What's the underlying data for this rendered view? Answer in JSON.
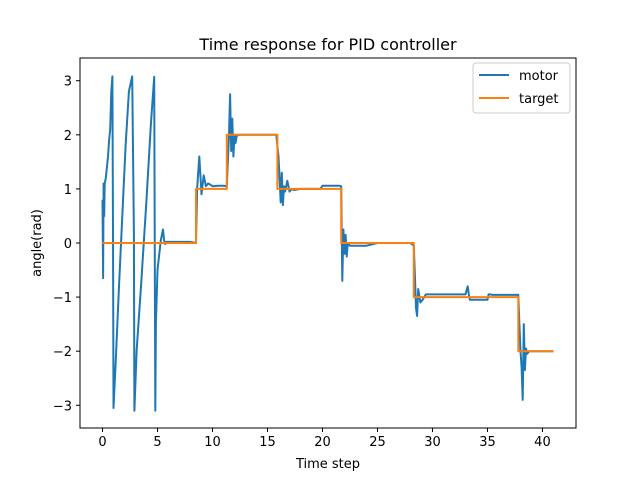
{
  "chart_data": {
    "type": "line",
    "title": "Time response for PID controller",
    "xlabel": "Time step",
    "ylabel": "angle(rad)",
    "xlim": [
      -2.05,
      43.05
    ],
    "ylim": [
      -3.42,
      3.42
    ],
    "xticks": [
      0,
      5,
      10,
      15,
      20,
      25,
      30,
      35,
      40
    ],
    "xtick_labels": [
      "0",
      "5",
      "10",
      "15",
      "20",
      "25",
      "30",
      "35",
      "40"
    ],
    "yticks": [
      -3,
      -2,
      -1,
      0,
      1,
      2,
      3
    ],
    "ytick_labels": [
      "−3",
      "−2",
      "−1",
      "0",
      "1",
      "2",
      "3"
    ],
    "grid": false,
    "legend_position": "top-right",
    "series": [
      {
        "name": "motor",
        "color": "#1f77b4",
        "x": [
          0.0,
          0.05,
          0.1,
          0.15,
          0.2,
          0.3,
          0.4,
          0.5,
          0.6,
          0.7,
          0.8,
          0.9,
          0.95,
          1.0,
          1.2,
          1.5,
          1.8,
          2.1,
          2.4,
          2.7,
          2.85,
          2.9,
          3.1,
          3.5,
          4.0,
          4.4,
          4.7,
          4.8,
          4.85,
          5.0,
          5.3,
          5.5,
          5.6,
          5.7,
          5.8,
          6.0,
          6.5,
          7.0,
          8.0,
          8.5,
          8.6,
          8.8,
          9.0,
          9.2,
          9.4,
          9.6,
          9.8,
          10.0,
          10.5,
          11.0,
          11.3,
          11.5,
          11.6,
          11.7,
          11.8,
          11.9,
          12.0,
          12.1,
          12.2,
          12.4,
          12.6,
          13.0,
          14.0,
          15.0,
          15.8,
          16.0,
          16.1,
          16.2,
          16.3,
          16.4,
          16.5,
          16.6,
          16.8,
          17.0,
          17.2,
          17.4,
          18.0,
          19.0,
          19.8,
          20.0,
          21.0,
          21.5,
          21.7,
          21.8,
          21.9,
          22.0,
          22.1,
          22.2,
          22.3,
          22.5,
          22.7,
          23.0,
          24.0,
          25.0,
          26.0,
          27.0,
          28.0,
          28.3,
          28.4,
          28.5,
          28.6,
          28.7,
          28.9,
          29.1,
          29.4,
          30.0,
          31.0,
          32.0,
          33.0,
          33.2,
          33.3,
          33.4,
          34.0,
          35.0,
          35.1,
          35.2,
          35.5,
          36.0,
          37.0,
          37.5,
          37.8,
          37.9,
          38.0,
          38.1,
          38.2,
          38.3,
          38.4,
          38.5,
          38.6,
          38.8,
          39.0,
          40.0,
          41.0
        ],
        "y": [
          0.8,
          -0.65,
          1.1,
          0.5,
          1.1,
          1.2,
          1.4,
          1.6,
          1.9,
          2.1,
          2.8,
          3.08,
          0.2,
          -3.05,
          -2.2,
          -0.8,
          0.5,
          1.8,
          2.8,
          3.08,
          0.2,
          -3.1,
          -2.0,
          -0.8,
          0.8,
          2.2,
          3.07,
          -3.1,
          -1.5,
          -0.5,
          0.05,
          0.25,
          0.05,
          -0.02,
          0.02,
          0.02,
          0.02,
          0.02,
          0.02,
          0.0,
          1.0,
          1.6,
          0.9,
          1.25,
          1.05,
          1.1,
          1.08,
          1.05,
          1.06,
          1.06,
          1.05,
          2.0,
          2.75,
          1.7,
          2.3,
          1.6,
          2.0,
          1.85,
          1.98,
          2.0,
          2.0,
          2.0,
          2.0,
          2.0,
          2.0,
          1.6,
          1.2,
          0.75,
          1.3,
          0.7,
          1.05,
          0.95,
          1.15,
          0.95,
          1.0,
          0.98,
          1.0,
          1.0,
          1.0,
          1.06,
          1.06,
          1.06,
          1.05,
          -0.7,
          0.25,
          -0.2,
          0.15,
          -0.25,
          0.0,
          -0.05,
          -0.05,
          -0.05,
          -0.05,
          0.0,
          0.0,
          0.0,
          0.0,
          -0.05,
          -0.6,
          -1.2,
          -1.35,
          -0.85,
          -1.1,
          -1.05,
          -0.95,
          -0.95,
          -0.95,
          -0.95,
          -0.95,
          -0.8,
          -0.95,
          -1.05,
          -1.05,
          -1.05,
          -0.95,
          -0.95,
          -0.96,
          -0.96,
          -0.96,
          -0.96,
          -0.96,
          -1.5,
          -2.0,
          -2.3,
          -2.9,
          -1.5,
          -2.35,
          -1.95,
          -2.05,
          -2.0,
          -2.0,
          -2.0,
          -2.0
        ]
      },
      {
        "name": "target",
        "color": "#ff7f0e",
        "x": [
          0.0,
          8.5,
          8.5,
          11.3,
          11.3,
          15.9,
          15.9,
          21.7,
          21.7,
          28.3,
          28.3,
          37.8,
          37.8,
          41.0
        ],
        "y": [
          0,
          0,
          1,
          1,
          2,
          2,
          1,
          1,
          0,
          0,
          -1,
          -1,
          -2,
          -2
        ]
      }
    ]
  }
}
